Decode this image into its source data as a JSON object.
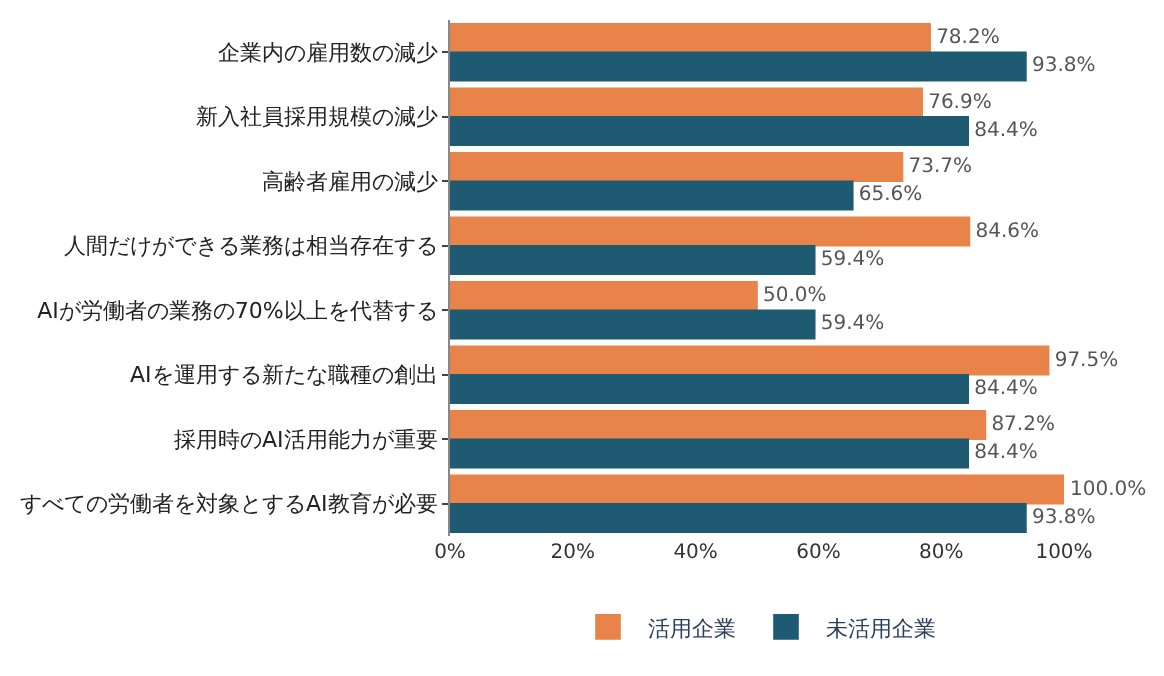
{
  "chart_data": {
    "type": "bar",
    "orientation": "horizontal",
    "categories": [
      "企業内の雇用数の減少",
      "新入社員採用規模の減少",
      "高齢者雇用の減少",
      "人間だけができる業務は相当存在する",
      "AIが労働者の業務の70%以上を代替する",
      "AIを運用する新たな職種の創出",
      "採用時のAI活用能力が重要",
      "すべての労働者を対象とするAI教育が必要"
    ],
    "series": [
      {
        "name": "活用企業",
        "color": "#e8834a",
        "values": [
          78.2,
          76.9,
          73.7,
          84.6,
          50.0,
          97.5,
          87.2,
          100.0
        ],
        "value_labels": [
          "78.2%",
          "76.9%",
          "73.7%",
          "84.6%",
          "50.0%",
          "97.5%",
          "87.2%",
          "100.0%"
        ]
      },
      {
        "name": "未活用企業",
        "color": "#1e5b73",
        "values": [
          93.8,
          84.4,
          65.6,
          59.4,
          59.4,
          84.4,
          84.4,
          93.8
        ],
        "value_labels": [
          "93.8%",
          "84.4%",
          "65.6%",
          "59.4%",
          "59.4%",
          "84.4%",
          "84.4%",
          "93.8%"
        ]
      }
    ],
    "xlim": [
      0,
      100
    ],
    "xticks": [
      {
        "value": 0,
        "label": "0%"
      },
      {
        "value": 20,
        "label": "20%"
      },
      {
        "value": 40,
        "label": "40%"
      },
      {
        "value": 60,
        "label": "60%"
      },
      {
        "value": 80,
        "label": "80%"
      },
      {
        "value": 100,
        "label": "100%"
      }
    ],
    "legend": "bottom"
  }
}
